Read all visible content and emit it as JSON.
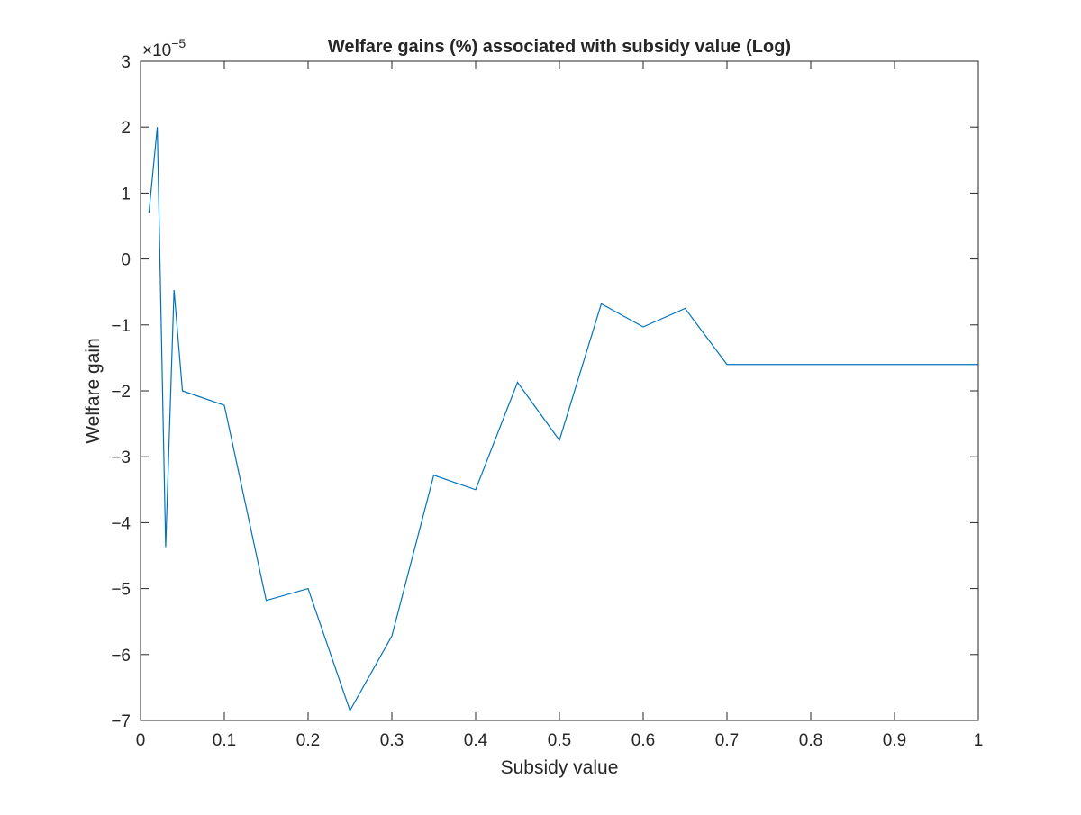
{
  "chart_data": {
    "type": "line",
    "title": "Welfare gains (%) associated with subsidy value (Log)",
    "xlabel": "Subsidy value",
    "ylabel": "Welfare gain",
    "y_multiplier": {
      "base": "10",
      "exponent": "−5"
    },
    "xlim": [
      0,
      1
    ],
    "ylim": [
      -7,
      3
    ],
    "x_ticks": [
      0,
      0.1,
      0.2,
      0.3,
      0.4,
      0.5,
      0.6,
      0.7,
      0.8,
      0.9,
      1
    ],
    "x_tick_labels": [
      "0",
      "0.1",
      "0.2",
      "0.3",
      "0.4",
      "0.5",
      "0.6",
      "0.7",
      "0.8",
      "0.9",
      "1"
    ],
    "y_ticks": [
      -7,
      -6,
      -5,
      -4,
      -3,
      -2,
      -1,
      0,
      1,
      2,
      3
    ],
    "y_tick_labels": [
      "−7",
      "−6",
      "−5",
      "−4",
      "−3",
      "−2",
      "−1",
      "0",
      "1",
      "2",
      "3"
    ],
    "grid": false,
    "line_color": "#0072BD",
    "series": [
      {
        "x": [
          0.01,
          0.02,
          0.03,
          0.04,
          0.05,
          0.1,
          0.15,
          0.2,
          0.25,
          0.3,
          0.35,
          0.4,
          0.45,
          0.5,
          0.55,
          0.6,
          0.65,
          0.7,
          0.75,
          0.8,
          0.85,
          0.9,
          0.95,
          1.0
        ],
        "y": [
          0.7,
          2.0,
          -4.37,
          -0.47,
          -2.0,
          -2.22,
          -5.18,
          -5.0,
          -6.85,
          -5.72,
          -3.28,
          -3.5,
          -1.87,
          -2.75,
          -0.68,
          -1.03,
          -0.75,
          -1.6,
          -1.6,
          -1.6,
          -1.6,
          -1.6,
          -1.6,
          -1.6
        ]
      }
    ]
  }
}
